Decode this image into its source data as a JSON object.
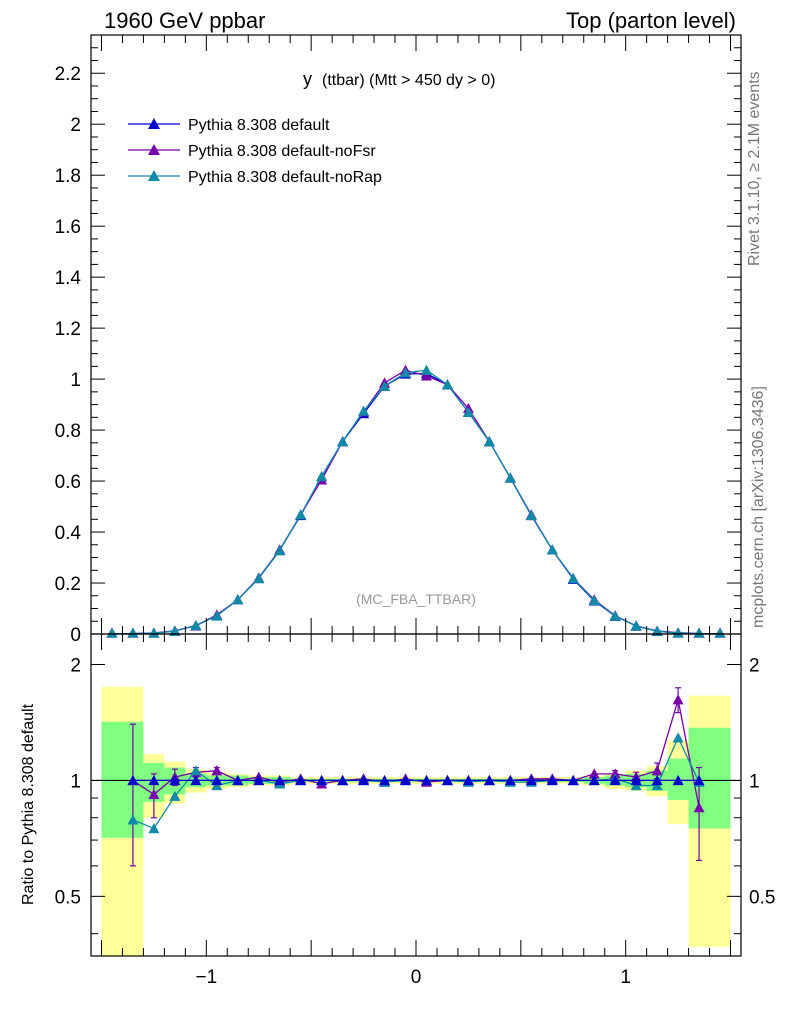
{
  "header": {
    "left": "1960 GeV ppbar",
    "right": "Top (parton level)"
  },
  "side": {
    "rivet": "Rivet 3.1.10, ≥ 2.1M events",
    "mcplots": "mcplots.cern.ch [arXiv:1306.3436]"
  },
  "chart_data": {
    "type": "line",
    "title_main": "y",
    "title_rest": "(ttbar) (Mtt > 450 dy > 0)",
    "watermark": "(MC_FBA_TTBAR)",
    "xlim": [
      -1.55,
      1.55
    ],
    "ylim": [
      0,
      2.35
    ],
    "yticks": [
      0,
      0.2,
      0.4,
      0.6,
      0.8,
      1,
      1.2,
      1.4,
      1.6,
      1.8,
      2,
      2.2
    ],
    "ytick_labels": [
      "0",
      "0.2",
      "0.4",
      "0.6",
      "0.8",
      "1",
      "1.2",
      "1.4",
      "1.6",
      "1.8",
      "2",
      "2.2"
    ],
    "xticks": [
      -1,
      0,
      1
    ],
    "xtick_labels": [
      "−1",
      "0",
      "1"
    ],
    "x": [
      -1.45,
      -1.35,
      -1.25,
      -1.15,
      -1.05,
      -0.95,
      -0.85,
      -0.75,
      -0.65,
      -0.55,
      -0.45,
      -0.35,
      -0.25,
      -0.15,
      -0.05,
      0.05,
      0.15,
      0.25,
      0.35,
      0.45,
      0.55,
      0.65,
      0.75,
      0.85,
      0.95,
      1.05,
      1.15,
      1.25,
      1.35,
      1.45
    ],
    "series": [
      {
        "name": "Pythia 8.308 default",
        "color": "#0000cc",
        "values": [
          0.0,
          0.001,
          0.004,
          0.012,
          0.032,
          0.072,
          0.135,
          0.218,
          0.33,
          0.465,
          0.618,
          0.755,
          0.865,
          0.972,
          1.02,
          1.022,
          0.978,
          0.87,
          0.755,
          0.612,
          0.465,
          0.33,
          0.215,
          0.13,
          0.07,
          0.032,
          0.011,
          0.003,
          0.001,
          0.0
        ]
      },
      {
        "name": "Pythia 8.308 default-noFsr",
        "color": "#7700aa",
        "values": [
          0.0,
          0.001,
          0.004,
          0.012,
          0.033,
          0.075,
          0.135,
          0.22,
          0.33,
          0.468,
          0.605,
          0.755,
          0.872,
          0.985,
          1.035,
          1.013,
          0.978,
          0.885,
          0.755,
          0.612,
          0.468,
          0.33,
          0.218,
          0.135,
          0.072,
          0.031,
          0.012,
          0.005,
          0.002,
          0.001
        ]
      },
      {
        "name": "Pythia 8.308 default-noRap",
        "color": "#118aa8",
        "values": [
          0.0,
          0.001,
          0.003,
          0.011,
          0.034,
          0.071,
          0.135,
          0.218,
          0.327,
          0.468,
          0.618,
          0.755,
          0.875,
          0.972,
          1.025,
          1.035,
          0.978,
          0.87,
          0.755,
          0.612,
          0.465,
          0.33,
          0.218,
          0.132,
          0.071,
          0.031,
          0.011,
          0.004,
          0.001,
          0.0
        ]
      }
    ],
    "ratio": {
      "ylabel": "Ratio to Pythia 8.308 default",
      "ylim": [
        0.35,
        2.4
      ],
      "yticks": [
        0.5,
        1,
        2
      ],
      "ytick_labels": [
        "0.5",
        "1",
        "2"
      ],
      "band_yellow": [
        [
          1.75,
          0.3
        ],
        [
          1.75,
          0.3
        ],
        [
          1.17,
          0.8
        ],
        [
          1.12,
          0.87
        ],
        [
          1.07,
          0.93
        ],
        [
          1.05,
          0.95
        ],
        [
          1.04,
          0.96
        ],
        [
          1.03,
          0.97
        ],
        [
          1.03,
          0.97
        ],
        [
          1.02,
          0.98
        ],
        [
          1.02,
          0.98
        ],
        [
          1.02,
          0.98
        ],
        [
          1.02,
          0.98
        ],
        [
          1.02,
          0.98
        ],
        [
          1.02,
          0.98
        ],
        [
          1.02,
          0.98
        ],
        [
          1.02,
          0.98
        ],
        [
          1.02,
          0.98
        ],
        [
          1.02,
          0.98
        ],
        [
          1.02,
          0.98
        ],
        [
          1.02,
          0.98
        ],
        [
          1.02,
          0.98
        ],
        [
          1.02,
          0.98
        ],
        [
          1.03,
          0.97
        ],
        [
          1.04,
          0.95
        ],
        [
          1.06,
          0.94
        ],
        [
          1.09,
          0.91
        ],
        [
          1.27,
          0.77
        ],
        [
          1.66,
          0.37
        ],
        [
          1.66,
          0.37
        ]
      ],
      "band_green": [
        [
          1.42,
          0.71
        ],
        [
          1.42,
          0.71
        ],
        [
          1.11,
          0.88
        ],
        [
          1.08,
          0.92
        ],
        [
          1.04,
          0.96
        ],
        [
          1.03,
          0.97
        ],
        [
          1.03,
          0.97
        ],
        [
          1.02,
          0.98
        ],
        [
          1.02,
          0.98
        ],
        [
          1.01,
          0.99
        ],
        [
          1.01,
          0.99
        ],
        [
          1.01,
          0.99
        ],
        [
          1.01,
          0.99
        ],
        [
          1.01,
          0.99
        ],
        [
          1.01,
          0.99
        ],
        [
          1.01,
          0.99
        ],
        [
          1.01,
          0.99
        ],
        [
          1.01,
          0.99
        ],
        [
          1.01,
          0.99
        ],
        [
          1.01,
          0.99
        ],
        [
          1.01,
          0.99
        ],
        [
          1.01,
          0.99
        ],
        [
          1.01,
          0.99
        ],
        [
          1.02,
          0.98
        ],
        [
          1.03,
          0.97
        ],
        [
          1.04,
          0.96
        ],
        [
          1.06,
          0.94
        ],
        [
          1.14,
          0.89
        ],
        [
          1.37,
          0.75
        ],
        [
          1.37,
          0.75
        ]
      ],
      "x": [
        -1.35,
        -1.25,
        -1.15,
        -1.05,
        -0.95,
        -0.85,
        -0.75,
        -0.65,
        -0.55,
        -0.45,
        -0.35,
        -0.25,
        -0.15,
        -0.05,
        0.05,
        0.15,
        0.25,
        0.35,
        0.45,
        0.55,
        0.65,
        0.75,
        0.85,
        0.95,
        1.05,
        1.15,
        1.25,
        1.35
      ],
      "series": [
        {
          "name": "Pythia 8.308 default-noFsr",
          "color": "#7700aa",
          "values": [
            1.0,
            0.92,
            1.02,
            1.05,
            1.06,
            1.0,
            1.02,
            0.99,
            1.01,
            0.98,
            1.0,
            1.01,
            0.99,
            1.01,
            0.99,
            1.0,
            1.0,
            1.0,
            1.0,
            1.01,
            1.01,
            1.0,
            1.04,
            1.04,
            1.02,
            1.06,
            1.62,
            0.85
          ],
          "errors": [
            0.4,
            0.12,
            0.05,
            0.03,
            0.02,
            0.01,
            0.01,
            0.01,
            0.01,
            0.01,
            0.01,
            0.01,
            0.01,
            0.01,
            0.01,
            0.01,
            0.01,
            0.01,
            0.01,
            0.01,
            0.01,
            0.01,
            0.01,
            0.02,
            0.03,
            0.05,
            0.12,
            0.23
          ]
        },
        {
          "name": "Pythia 8.308 default-noRap",
          "color": "#118aa8",
          "values": [
            0.79,
            0.75,
            0.91,
            1.06,
            0.97,
            1.0,
            1.0,
            0.98,
            1.0,
            1.0,
            1.0,
            1.0,
            0.99,
            1.0,
            1.0,
            1.0,
            0.99,
            1.0,
            0.99,
            0.99,
            1.0,
            1.0,
            1.0,
            1.01,
            0.97,
            0.97,
            1.29,
            0.99
          ]
        },
        {
          "name": "Pythia 8.308 default",
          "color": "#0000cc",
          "values": [
            1.0,
            1.0,
            1.0,
            1.0,
            1.0,
            1.0,
            1.0,
            1.0,
            1.0,
            1.0,
            1.0,
            1.0,
            1.0,
            1.0,
            1.0,
            1.0,
            1.0,
            1.0,
            1.0,
            1.0,
            1.0,
            1.0,
            1.0,
            1.0,
            1.0,
            1.0,
            1.0,
            1.0
          ]
        }
      ]
    }
  }
}
